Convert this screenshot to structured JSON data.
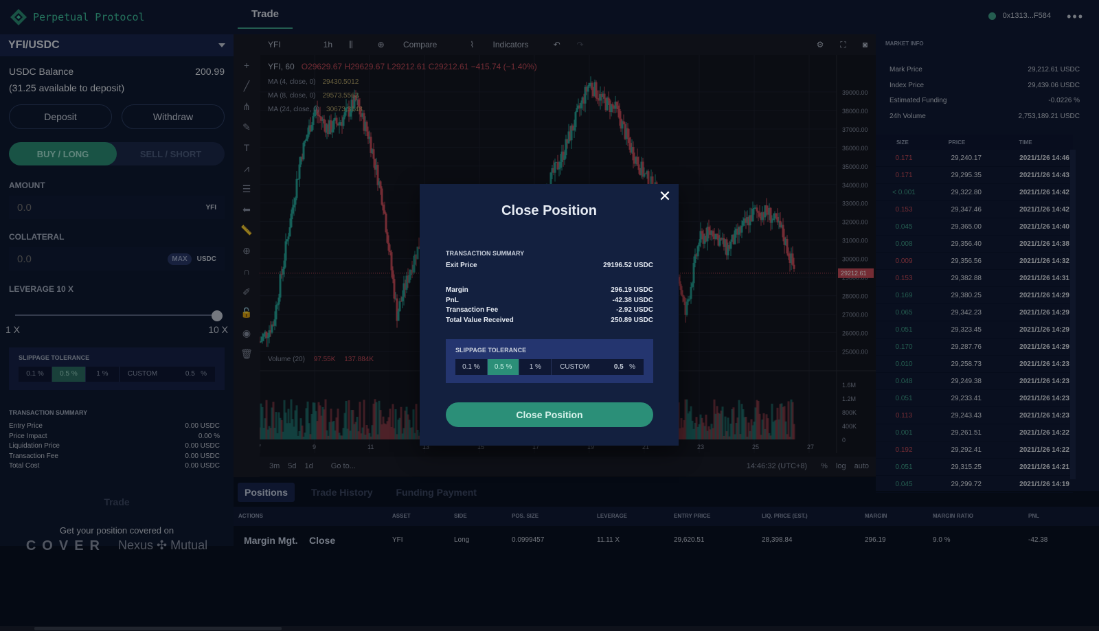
{
  "header": {
    "app_name": "Perpetual Protocol",
    "tab": "Trade",
    "wallet": "0x1313...F584",
    "more": "•••"
  },
  "left": {
    "pair": "YFI/USDC",
    "balance_label": "USDC Balance",
    "balance_value": "200.99",
    "available": "(31.25 available to deposit)",
    "deposit": "Deposit",
    "withdraw": "Withdraw",
    "buy": "BUY / LONG",
    "sell": "SELL / SHORT",
    "amount_label": "AMOUNT",
    "amount_placeholder": "0.0",
    "amount_unit": "YFI",
    "collateral_label": "COLLATERAL",
    "collateral_placeholder": "0.0",
    "max": "MAX",
    "collateral_unit": "USDC",
    "leverage_label": "LEVERAGE 10 X",
    "leverage_min": "1 X",
    "leverage_max": "10 X",
    "leverage_level": 1.0,
    "slippage_title": "SLIPPAGE TOLERANCE",
    "slippage_options": [
      "0.1 %",
      "0.5 %",
      "1 %"
    ],
    "slippage_custom": "CUSTOM",
    "slippage_custom_value": "0.5",
    "slippage_custom_unit": "%",
    "ts_title": "TRANSACTION SUMMARY",
    "ts_rows": [
      {
        "label": "Entry Price",
        "value": "0.00 USDC"
      },
      {
        "label": "Price Impact",
        "value": "0.00 %"
      },
      {
        "label": "Liquidation Price",
        "value": "0.00 USDC"
      },
      {
        "label": "Transaction Fee",
        "value": "0.00 USDC"
      },
      {
        "label": "Total Cost",
        "value": "0.00 USDC"
      }
    ],
    "trade_button": "Trade",
    "cover_text": "Get your position covered on",
    "cover_logo": "COVER",
    "nexus_logo": "Nexus ✣ Mutual"
  },
  "chart": {
    "symbol": "YFI",
    "interval": "1h",
    "compare": "Compare",
    "indicators": "Indicators",
    "legend_symbol": "YFI, 60",
    "o": "O29629.67",
    "h": "H29629.67",
    "l": "L29212.61",
    "c": "C29212.61",
    "chg": "−415.74 (−1.40%)",
    "ma": [
      {
        "label": "MA (4, close, 0)",
        "value": "29430.5012"
      },
      {
        "label": "MA (8, close, 0)",
        "value": "29573.5563"
      },
      {
        "label": "MA (24, close, 0)",
        "value": "30673.3148"
      }
    ],
    "volume_label": "Volume (20)",
    "vol1": "97.55K",
    "vol2": "137.884K",
    "last_price_tag": "29212.61",
    "price_ticks": [
      "39000.00",
      "38000.00",
      "37000.00",
      "36000.00",
      "35000.00",
      "34000.00",
      "33000.00",
      "32000.00",
      "31000.00",
      "30000.00",
      "29000.00",
      "28000.00",
      "27000.00",
      "26000.00",
      "25000.00"
    ],
    "volume_ticks": [
      "1.6M",
      "1.2M",
      "800K",
      "400K",
      "0"
    ],
    "date_ticks": [
      "7",
      "9",
      "11",
      "13",
      "15",
      "17",
      "19",
      "21",
      "23",
      "25",
      "27"
    ],
    "ranges": [
      "3m",
      "5d",
      "1d"
    ],
    "goto": "Go to...",
    "clock": "14:46:32 (UTC+8)",
    "pct": "%",
    "log": "log",
    "auto": "auto",
    "chart_data": {
      "type": "candlestick",
      "series": [
        {
          "name": "YFI, 60",
          "close_path": [
            [
              7,
              25500
            ],
            [
              7.5,
              26500
            ],
            [
              8,
              31000
            ],
            [
              8.5,
              35500
            ],
            [
              9,
              38000
            ],
            [
              9.5,
              37000
            ],
            [
              10,
              37500
            ],
            [
              10.5,
              38500
            ],
            [
              11,
              36500
            ],
            [
              11.5,
              33000
            ],
            [
              12,
              27000
            ],
            [
              12.5,
              29500
            ],
            [
              13,
              31500
            ],
            [
              13.5,
              30000
            ],
            [
              14,
              31000
            ],
            [
              14.5,
              32000
            ],
            [
              15,
              31500
            ],
            [
              15.5,
              30500
            ],
            [
              16,
              31000
            ],
            [
              16.5,
              31500
            ],
            [
              17,
              32500
            ],
            [
              17.5,
              34000
            ],
            [
              18,
              35500
            ],
            [
              18.5,
              37500
            ],
            [
              19,
              39500
            ],
            [
              19.5,
              38500
            ],
            [
              20,
              38000
            ],
            [
              20.5,
              36000
            ],
            [
              21,
              34500
            ],
            [
              21.5,
              33500
            ],
            [
              22,
              31000
            ],
            [
              22.5,
              27000
            ],
            [
              23,
              31000
            ],
            [
              23.5,
              31500
            ],
            [
              24,
              30500
            ],
            [
              24.5,
              31500
            ],
            [
              25,
              32500
            ],
            [
              25.5,
              32500
            ],
            [
              26,
              31500
            ],
            [
              26.5,
              29200
            ]
          ]
        }
      ],
      "ylim": [
        24500,
        39700
      ],
      "xlim": [
        7,
        28
      ]
    }
  },
  "market": {
    "title": "MARKET INFO",
    "rows": [
      {
        "label": "Mark Price",
        "value": "29,212.61 USDC"
      },
      {
        "label": "Index Price",
        "value": "29,439.06 USDC"
      },
      {
        "label": "Estimated Funding",
        "value": "-0.0226 %"
      },
      {
        "label": "24h Volume",
        "value": "2,753,189.21 USDC"
      }
    ],
    "cols": [
      "SIZE",
      "PRICE",
      "TIME"
    ],
    "trades": [
      {
        "size": "0.171",
        "side": "red",
        "price": "29,240.17",
        "time": "2021/1/26 14:46"
      },
      {
        "size": "0.171",
        "side": "red",
        "price": "29,295.35",
        "time": "2021/1/26 14:43"
      },
      {
        "size": "< 0.001",
        "side": "green",
        "price": "29,322.80",
        "time": "2021/1/26 14:42"
      },
      {
        "size": "0.153",
        "side": "red",
        "price": "29,347.46",
        "time": "2021/1/26 14:42"
      },
      {
        "size": "0.045",
        "side": "green",
        "price": "29,365.00",
        "time": "2021/1/26 14:40"
      },
      {
        "size": "0.008",
        "side": "green",
        "price": "29,356.40",
        "time": "2021/1/26 14:38"
      },
      {
        "size": "0.009",
        "side": "red",
        "price": "29,356.56",
        "time": "2021/1/26 14:32"
      },
      {
        "size": "0.153",
        "side": "red",
        "price": "29,382.88",
        "time": "2021/1/26 14:31"
      },
      {
        "size": "0.169",
        "side": "green",
        "price": "29,380.25",
        "time": "2021/1/26 14:29"
      },
      {
        "size": "0.065",
        "side": "green",
        "price": "29,342.23",
        "time": "2021/1/26 14:29"
      },
      {
        "size": "0.051",
        "side": "green",
        "price": "29,323.45",
        "time": "2021/1/26 14:29"
      },
      {
        "size": "0.170",
        "side": "green",
        "price": "29,287.76",
        "time": "2021/1/26 14:29"
      },
      {
        "size": "0.010",
        "side": "green",
        "price": "29,258.73",
        "time": "2021/1/26 14:23"
      },
      {
        "size": "0.048",
        "side": "green",
        "price": "29,249.38",
        "time": "2021/1/26 14:23"
      },
      {
        "size": "0.051",
        "side": "green",
        "price": "29,233.41",
        "time": "2021/1/26 14:23"
      },
      {
        "size": "0.113",
        "side": "red",
        "price": "29,243.43",
        "time": "2021/1/26 14:23"
      },
      {
        "size": "0.001",
        "side": "green",
        "price": "29,261.51",
        "time": "2021/1/26 14:22"
      },
      {
        "size": "0.192",
        "side": "red",
        "price": "29,292.41",
        "time": "2021/1/26 14:22"
      },
      {
        "size": "0.051",
        "side": "green",
        "price": "29,315.25",
        "time": "2021/1/26 14:21"
      },
      {
        "size": "0.045",
        "side": "green",
        "price": "29,299.72",
        "time": "2021/1/26 14:19"
      }
    ]
  },
  "positions": {
    "tabs": [
      "Positions",
      "Trade History",
      "Funding Payment"
    ],
    "cols": [
      "ACTIONS",
      "ASSET",
      "SIDE",
      "POS. SIZE",
      "LEVERAGE",
      "ENTRY PRICE",
      "LIQ. PRICE (EST.)",
      "MARGIN",
      "MARGIN RATIO",
      "PNL"
    ],
    "row": {
      "action1": "Margin Mgt.",
      "action2": "Close",
      "asset": "YFI",
      "side": "Long",
      "size": "0.0999457",
      "leverage": "11.11 X",
      "entry": "29,620.51",
      "liq": "28,398.84",
      "margin": "296.19",
      "ratio": "9.0 %",
      "pnl": "-42.38"
    }
  },
  "modal": {
    "title": "Close Position",
    "close": "✕",
    "ts_title": "TRANSACTION SUMMARY",
    "exit_label": "Exit Price",
    "exit_value": "29196.52 USDC",
    "rows": [
      {
        "label": "Margin",
        "value": "296.19 USDC"
      },
      {
        "label": "PnL",
        "value": "-42.38 USDC"
      },
      {
        "label": "Transaction Fee",
        "value": "-2.92 USDC"
      },
      {
        "label": "Total Value Received",
        "value": "250.89 USDC"
      }
    ],
    "slippage_title": "SLIPPAGE TOLERANCE",
    "slippage_options": [
      "0.1 %",
      "0.5 %",
      "1 %"
    ],
    "slippage_custom": "CUSTOM",
    "slippage_custom_value": "0.5",
    "slippage_custom_unit": "%",
    "button": "Close Position"
  },
  "colors": {
    "accent": "#2b8f78",
    "up": "#26a69a",
    "down": "#c94d5a",
    "bg": "#0a1224"
  }
}
